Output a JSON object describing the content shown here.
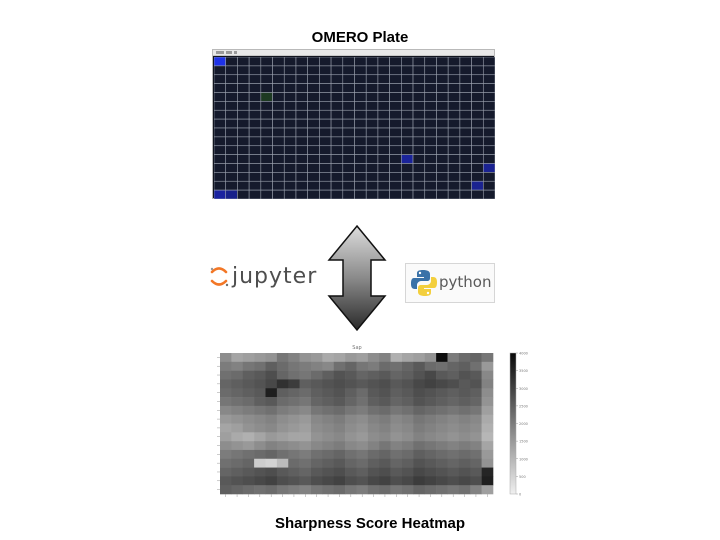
{
  "titles": {
    "plate": "OMERO Plate",
    "heatmap": "Sharpness Score Heatmap"
  },
  "logos": {
    "jupyter": "jupyter",
    "python": "python"
  },
  "arrow": {
    "icon": "double-headed-vertical-arrow-icon",
    "fill_top": "#dcdcdc",
    "fill_bottom": "#2a2a2a"
  },
  "plate": {
    "rows": 16,
    "columns": 24,
    "well_color": "#151a2c",
    "grid_line_color": "#9aa0ad",
    "bright_wells": [
      {
        "row": 0,
        "col": 0,
        "color": "#1e32e8"
      },
      {
        "row": 15,
        "col": 0,
        "color": "#1a22a0"
      },
      {
        "row": 15,
        "col": 1,
        "color": "#17208a"
      },
      {
        "row": 11,
        "col": 16,
        "color": "#1a239a"
      },
      {
        "row": 12,
        "col": 23,
        "color": "#1a2292"
      },
      {
        "row": 14,
        "col": 22,
        "color": "#1b2390"
      },
      {
        "row": 4,
        "col": 4,
        "color": "#1d3a22"
      }
    ]
  },
  "chart_data": {
    "type": "heatmap",
    "title": "Sap",
    "rows": 16,
    "columns": 24,
    "colorbar_ticks": [
      "4000",
      "3500",
      "3000",
      "2500",
      "2000",
      "1500",
      "1000",
      "500",
      "0"
    ],
    "colorbar_range": [
      0,
      4000
    ],
    "colormap": "grayscale, low = white, high = black",
    "values": [
      [
        1700,
        1300,
        1400,
        1500,
        1600,
        2100,
        1900,
        1600,
        1500,
        1200,
        1300,
        1500,
        1400,
        1700,
        1900,
        1100,
        1300,
        1400,
        1600,
        3900,
        2000,
        2300,
        2400,
        2100
      ],
      [
        2000,
        1900,
        2100,
        2200,
        2500,
        2300,
        2100,
        2000,
        1900,
        1800,
        2200,
        2400,
        2100,
        2000,
        2300,
        2200,
        2400,
        2600,
        2300,
        2200,
        2400,
        2500,
        2200,
        1500
      ],
      [
        2200,
        2300,
        2500,
        2600,
        2800,
        2400,
        2200,
        2100,
        2300,
        2500,
        2700,
        2600,
        2400,
        2500,
        2600,
        2400,
        2500,
        2700,
        2900,
        2600,
        2500,
        2700,
        2600,
        1800
      ],
      [
        2400,
        2500,
        2600,
        2700,
        2900,
        3300,
        3100,
        2500,
        2600,
        2700,
        2800,
        2700,
        2600,
        2700,
        2800,
        2600,
        2700,
        2900,
        3000,
        2900,
        2800,
        2600,
        2700,
        1900
      ],
      [
        2300,
        2400,
        2500,
        2600,
        3600,
        2500,
        2400,
        2300,
        2500,
        2600,
        2700,
        2500,
        2300,
        2600,
        2700,
        2500,
        2600,
        2800,
        2700,
        2600,
        2500,
        2600,
        2500,
        1700
      ],
      [
        2100,
        2200,
        2300,
        2500,
        2600,
        2300,
        2200,
        2100,
        2400,
        2500,
        2600,
        2400,
        2200,
        2500,
        2600,
        2400,
        2500,
        2700,
        2600,
        2500,
        2400,
        2500,
        2400,
        1600
      ],
      [
        1800,
        1900,
        2000,
        2100,
        2200,
        2000,
        1900,
        1800,
        2100,
        2200,
        2300,
        2100,
        2000,
        2200,
        2300,
        2100,
        2200,
        2400,
        2300,
        2200,
        2100,
        2200,
        2100,
        1400
      ],
      [
        1500,
        1600,
        1700,
        1800,
        1900,
        1700,
        1600,
        1500,
        1800,
        1900,
        2000,
        1800,
        1700,
        1900,
        2000,
        1800,
        1900,
        2100,
        2000,
        1900,
        1800,
        1900,
        1800,
        1200
      ],
      [
        1300,
        1400,
        1600,
        1700,
        1800,
        1600,
        1500,
        1400,
        1700,
        1800,
        1900,
        1700,
        1600,
        1800,
        1900,
        1700,
        1800,
        2000,
        1900,
        1800,
        1700,
        1800,
        1700,
        1100
      ],
      [
        1400,
        1200,
        1100,
        1300,
        1500,
        1400,
        1300,
        1300,
        1600,
        1700,
        1800,
        1600,
        1500,
        1700,
        1800,
        1600,
        1700,
        1900,
        1800,
        1700,
        1600,
        1700,
        1600,
        1000
      ],
      [
        1700,
        1600,
        1500,
        1700,
        1900,
        1800,
        1700,
        1600,
        1800,
        1900,
        2000,
        1800,
        1700,
        1900,
        2100,
        1900,
        2000,
        2200,
        2100,
        2000,
        1900,
        2000,
        1900,
        1300
      ],
      [
        2000,
        2100,
        2200,
        2300,
        2400,
        2200,
        2100,
        2000,
        2200,
        2300,
        2400,
        2200,
        2100,
        2300,
        2400,
        2200,
        2300,
        2500,
        2400,
        2300,
        2200,
        2300,
        2200,
        1500
      ],
      [
        2200,
        2300,
        2400,
        600,
        500,
        900,
        2300,
        2200,
        2400,
        2500,
        2600,
        2400,
        2300,
        2500,
        2600,
        2400,
        2500,
        2700,
        2600,
        2500,
        2400,
        2500,
        2400,
        1600
      ],
      [
        2400,
        2500,
        2600,
        2700,
        2800,
        2600,
        2500,
        2400,
        2600,
        2700,
        2800,
        2600,
        2500,
        2700,
        2800,
        2600,
        2700,
        2900,
        2800,
        2700,
        2600,
        2700,
        2600,
        3500
      ],
      [
        2600,
        2700,
        2800,
        2900,
        3000,
        2800,
        2700,
        2600,
        2800,
        2900,
        3000,
        2800,
        2700,
        2900,
        3000,
        2800,
        2900,
        3100,
        3000,
        2900,
        2800,
        2900,
        2800,
        3600
      ],
      [
        2500,
        2400,
        2300,
        2200,
        2300,
        2100,
        2000,
        1900,
        2100,
        2200,
        2300,
        2100,
        2000,
        2200,
        2300,
        2100,
        2200,
        2400,
        2300,
        2200,
        2100,
        2200,
        1900,
        1400
      ]
    ]
  }
}
